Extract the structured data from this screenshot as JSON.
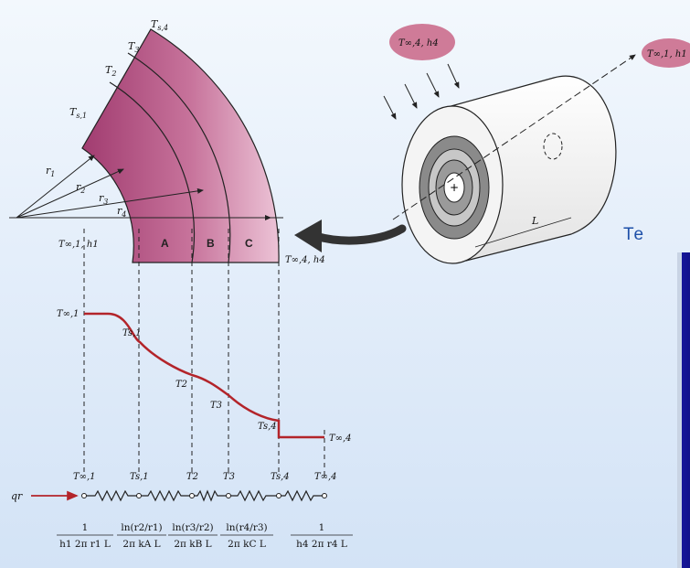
{
  "title_fragment": "Te",
  "colors": {
    "wall": "#b95585",
    "profile": "#b3242a",
    "panel": "#12129a",
    "title": "#1d4fa8",
    "cloud": "#cf7b98"
  },
  "labels": {
    "Ts4": "T",
    "Ts4_sub": "s,4",
    "T3": "T",
    "T3_sub": "3",
    "T2": "T",
    "T2_sub": "2",
    "Ts1": "T",
    "Ts1_sub": "s,1",
    "r1": "r",
    "r1_sub": "1",
    "r2": "r",
    "r2_sub": "2",
    "r3": "r",
    "r3_sub": "3",
    "r4": "r",
    "r4_sub": "4",
    "Tinf1_h1": "T∞,1, h1",
    "Tinf4_h4": "T∞,4, h4",
    "zone_a": "A",
    "zone_b": "B",
    "zone_c": "C",
    "L": "L",
    "cloud_left": "T∞,4, h4",
    "cloud_right": "T∞,1, h1",
    "qr": "qr"
  },
  "profile_labels": [
    "T∞,1",
    "Ts,1",
    "T2",
    "T3",
    "Ts,4",
    "T∞,4"
  ],
  "circuit_nodes": [
    "T∞,1",
    "Ts,1",
    "T2",
    "T3",
    "Ts,4",
    "T∞,4"
  ],
  "resistances": [
    {
      "num": "1",
      "den": "h1 2π r1 L"
    },
    {
      "num": "ln(r2/r1)",
      "den": "2π kA L"
    },
    {
      "num": "ln(r3/r2)",
      "den": "2π kB L"
    },
    {
      "num": "ln(r4/r3)",
      "den": "2π kC L"
    },
    {
      "num": "1",
      "den": "h4 2π r4 L"
    }
  ]
}
